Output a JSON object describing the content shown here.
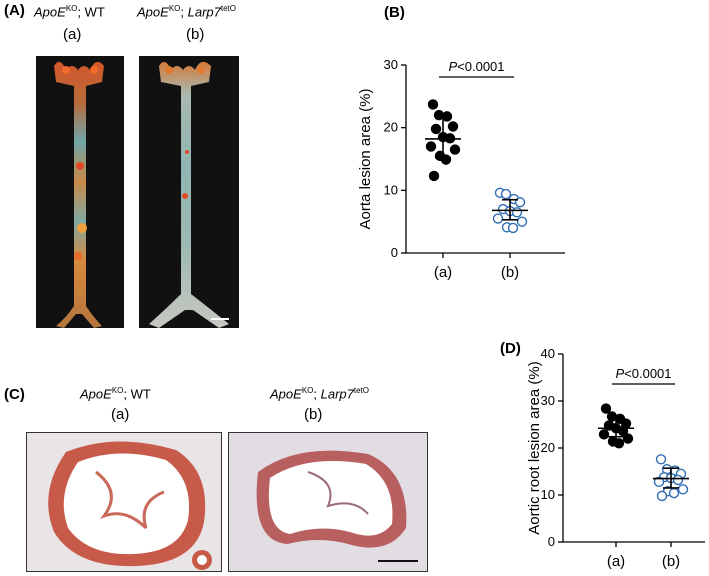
{
  "panels": {
    "A": {
      "letter": "(A)",
      "left": {
        "gene": "ApoE",
        "sup": "KO",
        "suffix": "; WT",
        "sub": "(a)"
      },
      "right": {
        "gene": "ApoE",
        "sup": "KO",
        "suffix": "; ",
        "gene2": "Larp7",
        "sup2": "tetO",
        "sub": "(b)"
      }
    },
    "B": {
      "letter": "(B)"
    },
    "C": {
      "letter": "(C)",
      "left": {
        "gene": "ApoE",
        "sup": "KO",
        "suffix": "; WT",
        "sub": "(a)"
      },
      "right": {
        "gene": "ApoE",
        "sup": "KO",
        "suffix": "; ",
        "gene2": "Larp7",
        "sup2": "tetO",
        "sub": "(b)"
      }
    },
    "D": {
      "letter": "(D)"
    }
  },
  "chart_data": [
    {
      "type": "scatter",
      "panel": "B",
      "ylabel": "Aorta lesion area (%)",
      "categories": [
        "(a)",
        "(b)"
      ],
      "ylim": [
        0,
        30
      ],
      "yticks": [
        0,
        10,
        20,
        30
      ],
      "annotation": "P<0.0001",
      "groups": [
        {
          "category": "(a)",
          "marker": "filled",
          "color": "#000000",
          "mean": 18.2,
          "sd_low": 15.2,
          "sd_high": 21.5,
          "values": [
            23.7,
            22.0,
            21.8,
            20.2,
            19.8,
            18.5,
            18.3,
            17.0,
            16.5,
            15.5,
            14.9,
            12.3
          ]
        },
        {
          "category": "(b)",
          "marker": "open",
          "color": "#2f6db5",
          "mean": 6.8,
          "sd_low": 5.3,
          "sd_high": 8.5,
          "values": [
            9.6,
            9.4,
            8.6,
            8.1,
            7.0,
            6.7,
            6.5,
            5.5,
            5.0,
            4.1,
            4.0
          ]
        }
      ]
    },
    {
      "type": "scatter",
      "panel": "D",
      "ylabel": "Aortic root lesion area (%)",
      "categories": [
        "(a)",
        "(b)"
      ],
      "ylim": [
        0,
        40
      ],
      "yticks": [
        0,
        10,
        20,
        30,
        40
      ],
      "annotation": "P<0.0001",
      "groups": [
        {
          "category": "(a)",
          "marker": "filled",
          "color": "#000000",
          "mean": 24.2,
          "sd_low": 22.4,
          "sd_high": 26.2,
          "values": [
            28.4,
            26.7,
            26.2,
            25.2,
            24.8,
            24.2,
            23.6,
            22.9,
            22.0,
            21.4,
            21.0
          ]
        },
        {
          "category": "(b)",
          "marker": "open",
          "color": "#2f6db5",
          "mean": 13.5,
          "sd_low": 11.5,
          "sd_high": 15.7,
          "values": [
            17.6,
            15.5,
            15.2,
            14.5,
            13.8,
            13.6,
            13.2,
            12.8,
            11.2,
            10.8,
            10.4,
            9.8
          ]
        }
      ]
    }
  ],
  "colors": {
    "open_marker": "#2f6db5",
    "filled_marker": "#000000",
    "tissue_bg": "#111111"
  }
}
